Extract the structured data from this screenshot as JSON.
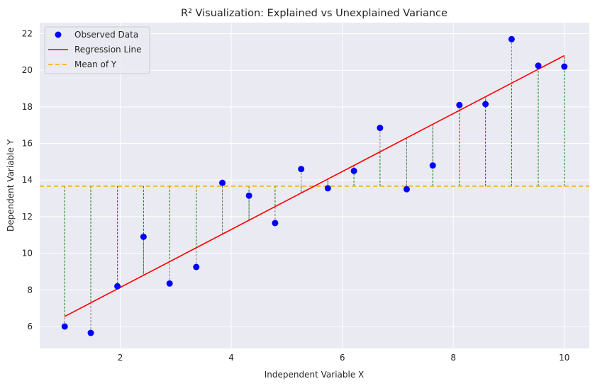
{
  "chart_data": {
    "type": "scatter",
    "title": "R² Visualization: Explained vs Unexplained Variance",
    "xlabel": "Independent Variable X",
    "ylabel": "Dependent Variable Y",
    "xlim": [
      0.55,
      10.45
    ],
    "ylim": [
      4.8,
      22.6
    ],
    "xticks": [
      2,
      4,
      6,
      8,
      10
    ],
    "yticks": [
      6,
      8,
      10,
      12,
      14,
      16,
      18,
      20,
      22
    ],
    "grid": true,
    "legend_position": "top-left",
    "mean_y": 13.67,
    "regression": {
      "x": [
        1,
        10
      ],
      "y": [
        6.55,
        20.8
      ]
    },
    "points": {
      "x": [
        1.0,
        1.47,
        1.95,
        2.42,
        2.89,
        3.37,
        3.84,
        4.32,
        4.79,
        5.26,
        5.74,
        6.21,
        6.68,
        7.16,
        7.63,
        8.11,
        8.58,
        9.05,
        9.53,
        10.0
      ],
      "y": [
        6.0,
        5.65,
        8.2,
        10.9,
        8.35,
        9.25,
        13.85,
        13.15,
        11.65,
        14.6,
        13.55,
        14.5,
        16.85,
        13.5,
        14.8,
        18.1,
        18.15,
        21.7,
        20.25,
        20.2
      ]
    },
    "legend": [
      {
        "label": "Observed Data",
        "kind": "marker",
        "color": "#0000ff"
      },
      {
        "label": "Regression Line",
        "kind": "line",
        "color": "#ff0000"
      },
      {
        "label": "Mean of Y",
        "kind": "dashed-line",
        "color": "#ffa500"
      }
    ],
    "colors": {
      "background": "#eaeaf2",
      "grid": "#ffffff",
      "points": "#0000ff",
      "regression": "#ff0000",
      "mean": "#ffa500",
      "explained": "#008000",
      "residual": "#808080"
    }
  }
}
